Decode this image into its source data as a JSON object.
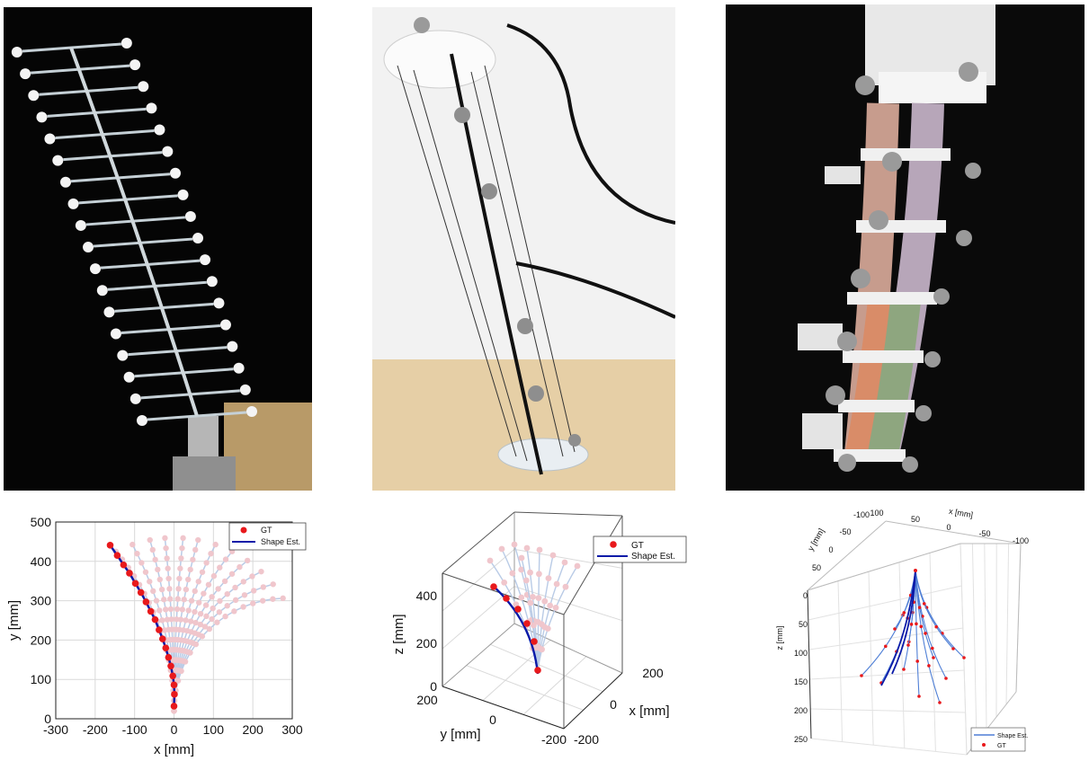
{
  "colors": {
    "gt_marker": "#e8191c",
    "shape_est_line": "#0a1aa8",
    "faded_marker": "#f0c6cc",
    "faded_line": "#b9cbe6",
    "shape_est_line_3": "#4f7fd6",
    "grid": "#d9d9d9"
  },
  "panels": [
    {
      "photo": "photo-planar-continuum-robot-with-white-markers"
    },
    {
      "photo": "photo-tendon-driven-rod-robot-with-cables"
    },
    {
      "photo": "photo-multi-segment-soft-robot-with-markers"
    }
  ],
  "chart_data": [
    {
      "type": "line",
      "xlabel": "x [mm]",
      "ylabel": "y [mm]",
      "xlim": [
        -300,
        300
      ],
      "ylim": [
        0,
        500
      ],
      "xticks": [
        "-300",
        "-200",
        "-100",
        "0",
        "100",
        "200",
        "300"
      ],
      "yticks": [
        "0",
        "100",
        "200",
        "300",
        "400",
        "500"
      ],
      "grid": true,
      "legend": {
        "placement": "top-right",
        "entries": [
          "GT",
          "Shape Est."
        ]
      },
      "highlighted_series": {
        "name": "GT / Shape Est.",
        "x": [
          0,
          1,
          0,
          -3,
          -8,
          -14,
          -21,
          -29,
          -38,
          -48,
          -59,
          -71,
          -84,
          -98,
          -113,
          -128,
          -144,
          -162
        ],
        "y": [
          32,
          62,
          86,
          109,
          134,
          156,
          180,
          203,
          226,
          252,
          273,
          297,
          321,
          344,
          370,
          391,
          415,
          441
        ]
      },
      "background_tip_angles_deg": [
        -20,
        -14,
        -8,
        -3,
        3,
        8,
        14,
        20,
        26,
        32,
        38,
        44
      ]
    },
    {
      "type": "line",
      "projection": "3d",
      "xlabel": "x [mm]",
      "ylabel": "y [mm]",
      "zlabel": "z [mm]",
      "xticks": [
        "200",
        "0",
        "-200"
      ],
      "yticks": [
        "200",
        "0",
        "-200"
      ],
      "zticks": [
        "0",
        "200",
        "400"
      ],
      "legend": {
        "placement": "top-right",
        "entries": [
          "GT",
          "Shape Est."
        ]
      }
    },
    {
      "type": "line",
      "projection": "3d",
      "xlabel": "x [mm]",
      "ylabel": "y [mm]",
      "zlabel": "z [mm]",
      "xticks": [
        "100",
        "50",
        "0",
        "-50",
        "-100"
      ],
      "yticks": [
        "-100",
        "-50",
        "0",
        "50"
      ],
      "zticks": [
        "0",
        "50",
        "100",
        "150",
        "200",
        "250"
      ],
      "legend": {
        "placement": "bottom-right",
        "entries": [
          "Shape Est.",
          "GT"
        ]
      }
    }
  ]
}
